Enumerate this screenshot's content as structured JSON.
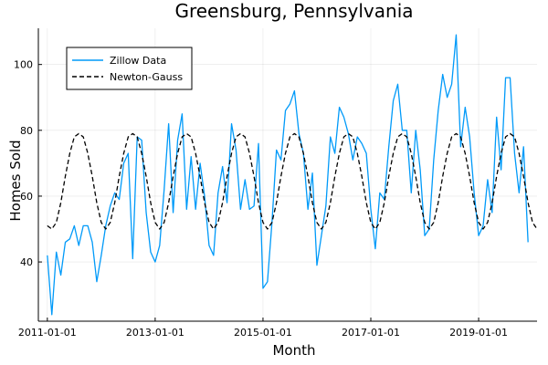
{
  "chart_data": {
    "type": "line",
    "title": "Greensburg, Pennsylvania",
    "xlabel": "Month",
    "ylabel": "Homes Sold",
    "x_start": "2011-01",
    "x_step": "month",
    "xlim": [
      "2010-11",
      "2020-02"
    ],
    "xticks": [
      "2011-01-01",
      "2013-01-01",
      "2015-01-01",
      "2017-01-01",
      "2019-01-01"
    ],
    "ylim": [
      22,
      111
    ],
    "yticks": [
      40,
      60,
      80,
      100
    ],
    "grid": true,
    "legend_position": "top-left",
    "series": [
      {
        "name": "Zillow Data",
        "style": "solid",
        "color": "#009AF9",
        "values": [
          42,
          24,
          43,
          36,
          46,
          47,
          51,
          45,
          51,
          51,
          46,
          34,
          42,
          51,
          57,
          61,
          59,
          70,
          73,
          41,
          78,
          77,
          55,
          43,
          40,
          45,
          62,
          82,
          55,
          77,
          85,
          56,
          72,
          56,
          70,
          60,
          45,
          42,
          61,
          69,
          58,
          82,
          74,
          56,
          65,
          56,
          57,
          76,
          32,
          34,
          52,
          74,
          71,
          86,
          88,
          92,
          79,
          73,
          56,
          67,
          39,
          48,
          57,
          78,
          73,
          87,
          84,
          79,
          71,
          78,
          76,
          73,
          56,
          44,
          61,
          59,
          75,
          89,
          94,
          80,
          80,
          61,
          80,
          68,
          48,
          50,
          71,
          86,
          97,
          90,
          94,
          109,
          75,
          87,
          78,
          61,
          48,
          51,
          65,
          55,
          84,
          68,
          96,
          96,
          73,
          61,
          75,
          46
        ]
      },
      {
        "name": "Newton-Gauss",
        "style": "dashed",
        "color": "#000000",
        "values": [
          51,
          50,
          52,
          58,
          66,
          73,
          78,
          79,
          78,
          73,
          66,
          58,
          52,
          50,
          52,
          58,
          66,
          73,
          78,
          79,
          78,
          73,
          66,
          58,
          52,
          50,
          52,
          58,
          66,
          73,
          78,
          79,
          78,
          73,
          66,
          58,
          52,
          50,
          52,
          58,
          66,
          73,
          78,
          79,
          78,
          73,
          66,
          58,
          52,
          50,
          52,
          58,
          66,
          73,
          78,
          79,
          78,
          73,
          66,
          58,
          52,
          50,
          52,
          58,
          66,
          73,
          78,
          79,
          78,
          73,
          66,
          58,
          52,
          50,
          52,
          58,
          66,
          73,
          78,
          79,
          78,
          73,
          66,
          58,
          52,
          50,
          52,
          58,
          66,
          73,
          78,
          79,
          78,
          73,
          66,
          58,
          52,
          50,
          52,
          58,
          66,
          73,
          78,
          79,
          78,
          73,
          66,
          58,
          52,
          50
        ]
      }
    ]
  }
}
